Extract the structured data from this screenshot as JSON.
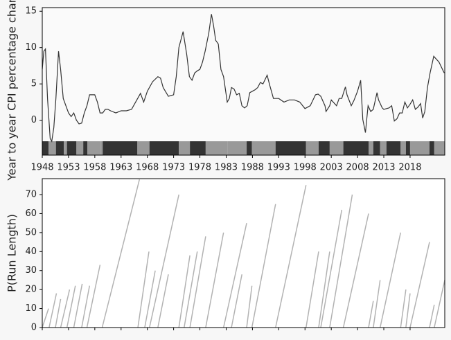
{
  "chart_data": [
    {
      "type": "line",
      "ylabel": "Year to year CPI percentage change",
      "color": "#333333",
      "x": [
        1948,
        1948.3,
        1948.6,
        1949,
        1949.5,
        1949.8,
        1950.2,
        1950.6,
        1951.1,
        1951.5,
        1952,
        1952.5,
        1953,
        1953.5,
        1954,
        1954.5,
        1955,
        1955.5,
        1956,
        1956.5,
        1957,
        1957.5,
        1958,
        1958.5,
        1959,
        1959.5,
        1960,
        1960.5,
        1961,
        1962,
        1963,
        1964,
        1965,
        1966,
        1966.7,
        1967.3,
        1968,
        1969,
        1970,
        1970.5,
        1971,
        1972,
        1973,
        1973.5,
        1974,
        1974.8,
        1975.5,
        1976,
        1976.5,
        1977,
        1977.5,
        1978,
        1978.5,
        1979,
        1979.7,
        1980.2,
        1980.6,
        1981,
        1981.5,
        1982,
        1982.5,
        1983,
        1983.2,
        1983.6,
        1984,
        1984.5,
        1985,
        1985.5,
        1986,
        1986.5,
        1987,
        1987.5,
        1988,
        1988.5,
        1989,
        1989.5,
        1990,
        1990.8,
        1991.3,
        1992,
        1993,
        1994,
        1995,
        1996,
        1997,
        1998,
        1999,
        2000,
        2000.5,
        2001,
        2001.8,
        2002,
        2002.7,
        2003,
        2004,
        2004.5,
        2005,
        2005.7,
        2006,
        2006.8,
        2007.3,
        2008,
        2008.6,
        2009,
        2009.5,
        2010,
        2010.5,
        2011,
        2011.7,
        2012,
        2012.7,
        2013,
        2014,
        2014.5,
        2015,
        2015.5,
        2016,
        2016.5,
        2017,
        2017.5,
        2018,
        2018.5,
        2019,
        2019.5,
        2020,
        2020.4,
        2020.8,
        2021.3,
        2021.8,
        2022.5,
        2023.5,
        2024.5
      ],
      "values": [
        7,
        9.5,
        9.8,
        3,
        -2.5,
        -2.9,
        -1,
        3,
        9.5,
        7,
        3,
        2,
        1,
        0.5,
        1,
        0,
        -0.5,
        -0.4,
        1,
        2,
        3.5,
        3.5,
        3.5,
        2.5,
        1,
        1,
        1.5,
        1.5,
        1.3,
        1,
        1.3,
        1.3,
        1.5,
        2.8,
        3.7,
        2.5,
        4,
        5.3,
        6,
        5.8,
        4.5,
        3.3,
        3.5,
        6,
        10,
        12.2,
        9,
        6,
        5.5,
        6.5,
        6.8,
        7,
        8,
        9.5,
        12,
        14.6,
        13,
        11,
        10.5,
        7,
        6,
        3.5,
        2.5,
        3,
        4.5,
        4.3,
        3.5,
        3.7,
        2,
        1.7,
        2,
        3.8,
        4,
        4.2,
        4.5,
        5.2,
        5,
        6.2,
        4.8,
        3,
        3,
        2.5,
        2.8,
        2.8,
        2.5,
        1.6,
        2,
        3.5,
        3.6,
        3.3,
        2,
        1.2,
        2,
        2.8,
        2,
        3,
        3,
        4.6,
        3.5,
        2,
        2.7,
        4,
        5.5,
        0.1,
        -1.7,
        2,
        1.2,
        1.5,
        3.8,
        2.8,
        1.7,
        1.5,
        1.7,
        2,
        -0.1,
        0.2,
        1,
        1,
        2.5,
        1.7,
        2.2,
        2.8,
        1.5,
        1.8,
        2.3,
        0.3,
        1.2,
        4.5,
        6.5,
        8.8,
        8,
        6.5
      ],
      "segments": [
        {
          "start": 1948,
          "end": 1949.2,
          "color": "#333333"
        },
        {
          "start": 1949.2,
          "end": 1950.6,
          "color": "#999999"
        },
        {
          "start": 1950.6,
          "end": 1952.1,
          "color": "#333333"
        },
        {
          "start": 1952.1,
          "end": 1952.7,
          "color": "#999999"
        },
        {
          "start": 1952.7,
          "end": 1954.5,
          "color": "#333333"
        },
        {
          "start": 1954.5,
          "end": 1955.8,
          "color": "#999999"
        },
        {
          "start": 1955.8,
          "end": 1956.6,
          "color": "#333333"
        },
        {
          "start": 1956.6,
          "end": 1959.1,
          "color": "#999999"
        },
        {
          "start": 1959.1,
          "end": 1959.5,
          "color": "#999999"
        },
        {
          "start": 1959.5,
          "end": 1966.1,
          "color": "#333333"
        },
        {
          "start": 1966.1,
          "end": 1968.4,
          "color": "#999999"
        },
        {
          "start": 1968.4,
          "end": 1974.0,
          "color": "#333333"
        },
        {
          "start": 1974.0,
          "end": 1976.1,
          "color": "#999999"
        },
        {
          "start": 1976.1,
          "end": 1979.1,
          "color": "#333333"
        },
        {
          "start": 1979.1,
          "end": 1983.3,
          "color": "#999999"
        },
        {
          "start": 1983.3,
          "end": 1986.9,
          "color": "#999999"
        },
        {
          "start": 1986.9,
          "end": 1987.9,
          "color": "#333333"
        },
        {
          "start": 1987.9,
          "end": 1992.4,
          "color": "#999999"
        },
        {
          "start": 1992.4,
          "end": 1998.2,
          "color": "#333333"
        },
        {
          "start": 1998.2,
          "end": 2000.6,
          "color": "#999999"
        },
        {
          "start": 2000.6,
          "end": 2002.7,
          "color": "#333333"
        },
        {
          "start": 2002.7,
          "end": 2005.3,
          "color": "#999999"
        },
        {
          "start": 2005.3,
          "end": 2010.1,
          "color": "#333333"
        },
        {
          "start": 2010.1,
          "end": 2011.0,
          "color": "#999999"
        },
        {
          "start": 2011.0,
          "end": 2012.3,
          "color": "#333333"
        },
        {
          "start": 2012.3,
          "end": 2013.5,
          "color": "#999999"
        },
        {
          "start": 2013.5,
          "end": 2016.2,
          "color": "#333333"
        },
        {
          "start": 2016.2,
          "end": 2017.2,
          "color": "#999999"
        },
        {
          "start": 2017.2,
          "end": 2018.0,
          "color": "#333333"
        },
        {
          "start": 2018.0,
          "end": 2021.7,
          "color": "#999999"
        },
        {
          "start": 2021.7,
          "end": 2022.6,
          "color": "#333333"
        },
        {
          "start": 2022.6,
          "end": 2024.6,
          "color": "#999999"
        }
      ],
      "xlim": [
        1948,
        2024.6
      ],
      "ylim": [
        -4.8,
        15.5
      ],
      "xticks": [
        1948,
        1953,
        1958,
        1963,
        1968,
        1973,
        1978,
        1983,
        1988,
        1993,
        1998,
        2003,
        2008,
        2013,
        2018
      ],
      "yticks": [
        0,
        5,
        10,
        15
      ]
    },
    {
      "type": "runlength",
      "ylabel": "P(Run Length)",
      "color": "#555555",
      "streaks": [
        {
          "start": 1948,
          "end": 1949.2,
          "length": 10
        },
        {
          "start": 1949.3,
          "end": 1950.7,
          "length": 18
        },
        {
          "start": 1950.5,
          "end": 1951.5,
          "length": 15
        },
        {
          "start": 1951.5,
          "end": 1953.2,
          "length": 20
        },
        {
          "start": 1952.7,
          "end": 1954.3,
          "length": 22
        },
        {
          "start": 1954,
          "end": 1955.6,
          "length": 23
        },
        {
          "start": 1955.5,
          "end": 1957,
          "length": 22
        },
        {
          "start": 1956.5,
          "end": 1959,
          "length": 33
        },
        {
          "start": 1959.4,
          "end": 1966.5,
          "length": 78
        },
        {
          "start": 1966.2,
          "end": 1968.3,
          "length": 40
        },
        {
          "start": 1967.5,
          "end": 1969.5,
          "length": 30
        },
        {
          "start": 1968.4,
          "end": 1974,
          "length": 70
        },
        {
          "start": 1970,
          "end": 1972,
          "length": 28
        },
        {
          "start": 1974,
          "end": 1976.1,
          "length": 38
        },
        {
          "start": 1975,
          "end": 1977.5,
          "length": 40
        },
        {
          "start": 1976.1,
          "end": 1979.1,
          "length": 48
        },
        {
          "start": 1979.1,
          "end": 1982.5,
          "length": 50
        },
        {
          "start": 1982.5,
          "end": 1986.9,
          "length": 55
        },
        {
          "start": 1984,
          "end": 1986,
          "length": 28
        },
        {
          "start": 1986.9,
          "end": 1987.9,
          "length": 22
        },
        {
          "start": 1987.9,
          "end": 1992.4,
          "length": 65
        },
        {
          "start": 1992.4,
          "end": 1998.2,
          "length": 75
        },
        {
          "start": 1998.2,
          "end": 2000.6,
          "length": 40
        },
        {
          "start": 2000.6,
          "end": 2002.7,
          "length": 40
        },
        {
          "start": 2001,
          "end": 2005,
          "length": 62
        },
        {
          "start": 2002.7,
          "end": 2007,
          "length": 70
        },
        {
          "start": 2005.3,
          "end": 2010.1,
          "length": 60
        },
        {
          "start": 2010.1,
          "end": 2011,
          "length": 14
        },
        {
          "start": 2011,
          "end": 2012.3,
          "length": 25
        },
        {
          "start": 2012.3,
          "end": 2016.2,
          "length": 50
        },
        {
          "start": 2016.2,
          "end": 2017.2,
          "length": 20
        },
        {
          "start": 2017.2,
          "end": 2018,
          "length": 18
        },
        {
          "start": 2018,
          "end": 2021.7,
          "length": 45
        },
        {
          "start": 2021.7,
          "end": 2022.6,
          "length": 12
        },
        {
          "start": 2022.6,
          "end": 2024.6,
          "length": 25
        }
      ],
      "xlim": [
        1948,
        2024.6
      ],
      "ylim": [
        0,
        78.4
      ],
      "xticks": [
        1948,
        1953,
        1958,
        1963,
        1968,
        1973,
        1978,
        1983,
        1988,
        1993,
        1998,
        2003,
        2008,
        2013,
        2018
      ],
      "yticks": [
        0,
        10,
        20,
        30,
        40,
        50,
        60,
        70
      ]
    }
  ]
}
